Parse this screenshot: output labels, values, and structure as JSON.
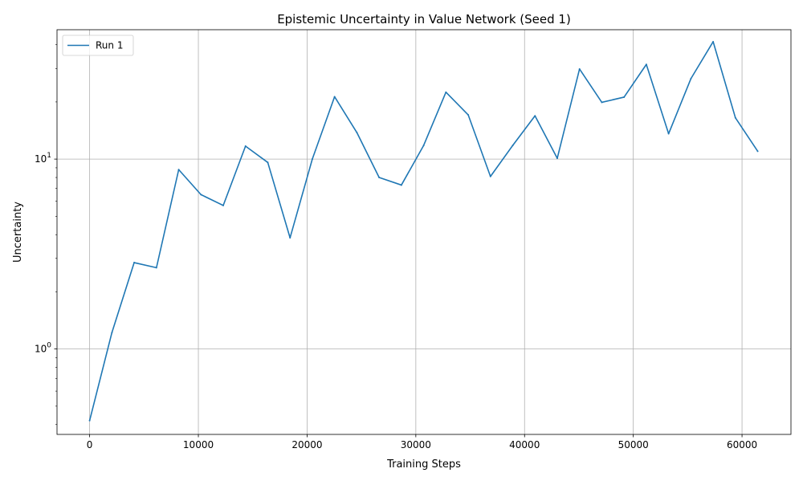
{
  "chart_data": {
    "type": "line",
    "title": "Epistemic Uncertainty in Value Network (Seed 1)",
    "xlabel": "Training Steps",
    "ylabel": "Uncertainty",
    "xlim": [
      -3000,
      64500
    ],
    "ylim": [
      0.355,
      48
    ],
    "yscale": "log",
    "grid": true,
    "legend_position": "top-left",
    "x_ticks": [
      0,
      10000,
      20000,
      30000,
      40000,
      50000,
      60000
    ],
    "x_tick_labels": [
      "0",
      "10000",
      "20000",
      "30000",
      "40000",
      "50000",
      "60000"
    ],
    "y_ticks": [
      1,
      10
    ],
    "y_tick_labels": [
      "10^0",
      "10^1"
    ],
    "x": [
      0,
      2048,
      4096,
      6144,
      8192,
      10240,
      12288,
      14336,
      16384,
      18432,
      20480,
      22528,
      24576,
      26624,
      28672,
      30720,
      32768,
      34816,
      36864,
      38912,
      40960,
      43008,
      45056,
      47104,
      49152,
      51200,
      53248,
      55296,
      57344,
      59392,
      61440
    ],
    "series": [
      {
        "name": "Run 1",
        "color": "#1f77b4",
        "values": [
          0.42,
          1.22,
          2.85,
          2.68,
          8.8,
          6.5,
          5.7,
          11.7,
          9.6,
          3.85,
          10.0,
          21.3,
          13.8,
          8.0,
          7.3,
          11.8,
          22.5,
          17.1,
          8.1,
          11.8,
          16.9,
          10.1,
          29.8,
          19.9,
          21.2,
          31.5,
          13.6,
          26.5,
          41.5,
          16.5,
          11.0
        ]
      }
    ]
  }
}
